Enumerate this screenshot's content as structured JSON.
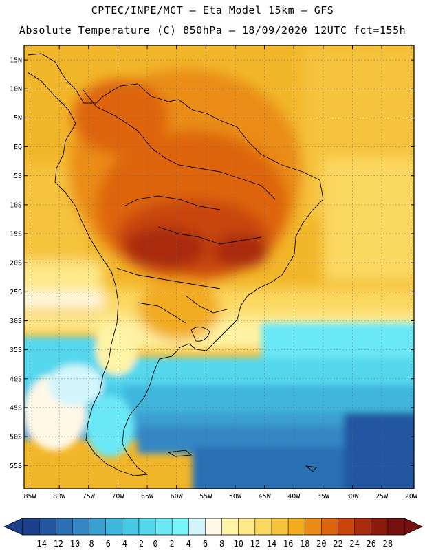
{
  "title_line1": "CPTEC/INPE/MCT —  Eta Model 15km — GFS",
  "title_line2": "Absolute Temperature (C) 850hPa — 18/09/2020 12UTC fct=155h",
  "map": {
    "lat_labels": [
      "15N",
      "10N",
      "5N",
      "EQ",
      "5S",
      "10S",
      "15S",
      "20S",
      "25S",
      "30S",
      "35S",
      "40S",
      "45S",
      "50S",
      "55S"
    ],
    "lat_values": [
      15,
      10,
      5,
      0,
      -5,
      -10,
      -15,
      -20,
      -25,
      -30,
      -35,
      -40,
      -45,
      -50,
      -55
    ],
    "lon_labels": [
      "85W",
      "80W",
      "75W",
      "70W",
      "65W",
      "60W",
      "55W",
      "50W",
      "45W",
      "40W",
      "35W",
      "30W",
      "25W",
      "20W"
    ],
    "lon_values": [
      -85,
      -80,
      -75,
      -70,
      -65,
      -60,
      -55,
      -50,
      -45,
      -40,
      -35,
      -30,
      -25,
      -20
    ],
    "lon_range": [
      -86,
      -19.5
    ],
    "lat_range": [
      -59,
      17.5
    ]
  },
  "colorbar": {
    "labels": [
      "-14",
      "-12",
      "-10",
      "-8",
      "-6",
      "-4",
      "-2",
      "0",
      "2",
      "4",
      "6",
      "8",
      "10",
      "12",
      "14",
      "16",
      "18",
      "20",
      "22",
      "24",
      "26",
      "28"
    ],
    "colors": [
      "#1b3f8a",
      "#2356a0",
      "#2a6fb4",
      "#3486c4",
      "#3a9fd0",
      "#3fb6dd",
      "#47c9e6",
      "#55d8ee",
      "#6be8f6",
      "#78f5fb",
      "#d2f6fb",
      "#fff8e6",
      "#fff3a5",
      "#fde88a",
      "#fbd860",
      "#f6c33c",
      "#f2ac20",
      "#ea8c14",
      "#de6510",
      "#c9450c",
      "#a92c0c",
      "#8c1a0c",
      "#74100e"
    ]
  }
}
